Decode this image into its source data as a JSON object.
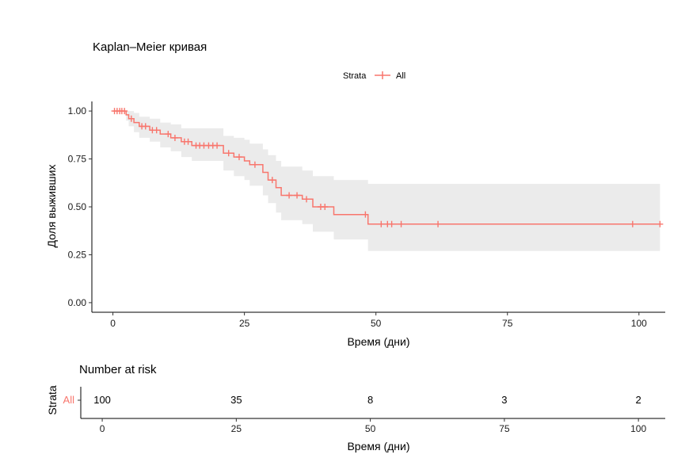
{
  "chart_data": {
    "type": "line",
    "title": "Kaplan–Meier кривая",
    "xlabel": "Время (дни)",
    "ylabel": "Доля выживших",
    "xlim": [
      -4,
      105
    ],
    "ylim": [
      -0.05,
      1.05
    ],
    "x_ticks": [
      0,
      25,
      50,
      75,
      100
    ],
    "y_ticks": [
      0.0,
      0.25,
      0.5,
      0.75,
      1.0
    ],
    "y_tick_labels": [
      "0.00",
      "0.25",
      "0.50",
      "0.75",
      "1.00"
    ],
    "legend": {
      "title": "Strata",
      "entries": [
        {
          "label": "All",
          "color": "#F8766D"
        }
      ],
      "position": "top"
    },
    "series": [
      {
        "name": "All",
        "color": "#F8766D",
        "ci_color": "#EBEBEB",
        "steps": [
          {
            "x": 0,
            "y": 1.0,
            "lo": 1.0,
            "hi": 1.0
          },
          {
            "x": 2.5,
            "y": 0.98,
            "lo": 0.95,
            "hi": 1.0
          },
          {
            "x": 3.0,
            "y": 0.96,
            "lo": 0.92,
            "hi": 1.0
          },
          {
            "x": 4.0,
            "y": 0.94,
            "lo": 0.89,
            "hi": 0.99
          },
          {
            "x": 5.0,
            "y": 0.92,
            "lo": 0.86,
            "hi": 0.97
          },
          {
            "x": 7.0,
            "y": 0.9,
            "lo": 0.84,
            "hi": 0.96
          },
          {
            "x": 9.0,
            "y": 0.88,
            "lo": 0.81,
            "hi": 0.94
          },
          {
            "x": 11.0,
            "y": 0.86,
            "lo": 0.79,
            "hi": 0.93
          },
          {
            "x": 13.0,
            "y": 0.84,
            "lo": 0.76,
            "hi": 0.91
          },
          {
            "x": 15.0,
            "y": 0.82,
            "lo": 0.74,
            "hi": 0.91
          },
          {
            "x": 21.0,
            "y": 0.78,
            "lo": 0.69,
            "hi": 0.87
          },
          {
            "x": 23.0,
            "y": 0.76,
            "lo": 0.66,
            "hi": 0.86
          },
          {
            "x": 25.0,
            "y": 0.74,
            "lo": 0.64,
            "hi": 0.85
          },
          {
            "x": 26.0,
            "y": 0.72,
            "lo": 0.61,
            "hi": 0.83
          },
          {
            "x": 28.5,
            "y": 0.68,
            "lo": 0.56,
            "hi": 0.8
          },
          {
            "x": 29.5,
            "y": 0.64,
            "lo": 0.52,
            "hi": 0.77
          },
          {
            "x": 31.0,
            "y": 0.6,
            "lo": 0.47,
            "hi": 0.74
          },
          {
            "x": 32.0,
            "y": 0.56,
            "lo": 0.43,
            "hi": 0.71
          },
          {
            "x": 36.0,
            "y": 0.54,
            "lo": 0.41,
            "hi": 0.69
          },
          {
            "x": 38.0,
            "y": 0.5,
            "lo": 0.37,
            "hi": 0.66
          },
          {
            "x": 42.0,
            "y": 0.46,
            "lo": 0.33,
            "hi": 0.64
          },
          {
            "x": 48.5,
            "y": 0.41,
            "lo": 0.27,
            "hi": 0.62
          },
          {
            "x": 104.0,
            "y": 0.41,
            "lo": 0.27,
            "hi": 0.62
          }
        ],
        "censored": [
          {
            "x": 0.3,
            "y": 1.0
          },
          {
            "x": 0.8,
            "y": 1.0
          },
          {
            "x": 1.3,
            "y": 1.0
          },
          {
            "x": 1.7,
            "y": 1.0
          },
          {
            "x": 2.2,
            "y": 1.0
          },
          {
            "x": 3.5,
            "y": 0.96
          },
          {
            "x": 5.5,
            "y": 0.92
          },
          {
            "x": 6.2,
            "y": 0.92
          },
          {
            "x": 7.5,
            "y": 0.9
          },
          {
            "x": 8.3,
            "y": 0.9
          },
          {
            "x": 10.5,
            "y": 0.88
          },
          {
            "x": 11.8,
            "y": 0.86
          },
          {
            "x": 13.6,
            "y": 0.84
          },
          {
            "x": 14.3,
            "y": 0.84
          },
          {
            "x": 15.8,
            "y": 0.82
          },
          {
            "x": 16.5,
            "y": 0.82
          },
          {
            "x": 17.3,
            "y": 0.82
          },
          {
            "x": 18.2,
            "y": 0.82
          },
          {
            "x": 19.0,
            "y": 0.82
          },
          {
            "x": 19.8,
            "y": 0.82
          },
          {
            "x": 22.0,
            "y": 0.78
          },
          {
            "x": 24.0,
            "y": 0.76
          },
          {
            "x": 27.0,
            "y": 0.72
          },
          {
            "x": 30.3,
            "y": 0.64
          },
          {
            "x": 33.5,
            "y": 0.56
          },
          {
            "x": 35.0,
            "y": 0.56
          },
          {
            "x": 36.8,
            "y": 0.54
          },
          {
            "x": 39.5,
            "y": 0.5
          },
          {
            "x": 40.3,
            "y": 0.5
          },
          {
            "x": 48.0,
            "y": 0.46
          },
          {
            "x": 51.0,
            "y": 0.41
          },
          {
            "x": 52.2,
            "y": 0.41
          },
          {
            "x": 53.0,
            "y": 0.41
          },
          {
            "x": 54.8,
            "y": 0.41
          },
          {
            "x": 61.8,
            "y": 0.41
          },
          {
            "x": 98.8,
            "y": 0.41
          },
          {
            "x": 104.0,
            "y": 0.41
          }
        ]
      }
    ],
    "risk_table": {
      "title": "Number at risk",
      "ylabel": "Strata",
      "strata_label": "All",
      "strata_color": "#F8766D",
      "xlabel": "Время (дни)",
      "times": [
        0,
        25,
        50,
        75,
        100
      ],
      "counts": [
        "100",
        "35",
        "8",
        "3",
        "2"
      ]
    }
  }
}
